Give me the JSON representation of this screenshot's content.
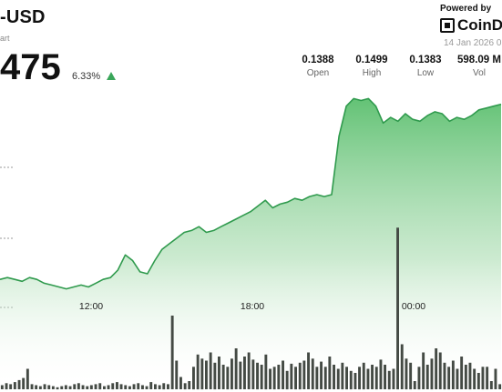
{
  "header": {
    "pair": "-USD",
    "subtitle": "art",
    "price": "475",
    "change": "6.33%",
    "powered_by": "Powered by",
    "brand": "CoinDe",
    "date": "14 Jan 2026 0"
  },
  "stats": [
    {
      "value": "0.1388",
      "label": "Open"
    },
    {
      "value": "0.1499",
      "label": "High"
    },
    {
      "value": "0.1383",
      "label": "Low"
    },
    {
      "value": "598.09 M",
      "label": "Vol"
    }
  ],
  "colors": {
    "up": "#3aa65a",
    "area_top": "#5bbf6e",
    "line": "#2f9a4d",
    "bars": "#444a44"
  },
  "chart_data": {
    "type": "area",
    "x_axis": {
      "tick_labels": [
        "12:00",
        "18:00",
        "00:00"
      ]
    },
    "price_series": [
      0.14,
      0.1401,
      0.14,
      0.1399,
      0.1401,
      0.14,
      0.1398,
      0.1397,
      0.1396,
      0.1395,
      0.1396,
      0.1397,
      0.1396,
      0.1398,
      0.14,
      0.1401,
      0.1405,
      0.1413,
      0.141,
      0.1404,
      0.1403,
      0.141,
      0.1416,
      0.1419,
      0.1422,
      0.1425,
      0.1426,
      0.1428,
      0.1425,
      0.1426,
      0.1428,
      0.143,
      0.1432,
      0.1434,
      0.1436,
      0.1439,
      0.1442,
      0.1438,
      0.144,
      0.1441,
      0.1443,
      0.1442,
      0.1444,
      0.1445,
      0.1444,
      0.1445,
      0.1476,
      0.1492,
      0.1496,
      0.1495,
      0.1496,
      0.1492,
      0.1483,
      0.1486,
      0.1484,
      0.1488,
      0.1485,
      0.1484,
      0.1487,
      0.1489,
      0.1488,
      0.1484,
      0.1486,
      0.1485,
      0.1487,
      0.149,
      0.1491,
      0.1492,
      0.1493
    ],
    "volume_series": [
      4,
      6,
      5,
      7,
      9,
      11,
      20,
      5,
      4,
      3,
      5,
      4,
      3,
      2,
      3,
      4,
      3,
      5,
      6,
      4,
      3,
      4,
      5,
      6,
      3,
      4,
      6,
      7,
      5,
      4,
      3,
      5,
      6,
      4,
      3,
      7,
      5,
      4,
      6,
      5,
      72,
      28,
      12,
      6,
      8,
      22,
      34,
      30,
      28,
      36,
      26,
      32,
      24,
      22,
      30,
      40,
      27,
      32,
      36,
      29,
      26,
      24,
      34,
      20,
      22,
      24,
      28,
      18,
      25,
      22,
      26,
      28,
      36,
      30,
      22,
      27,
      22,
      32,
      24,
      20,
      26,
      22,
      18,
      16,
      22,
      26,
      20,
      24,
      22,
      29,
      24,
      18,
      20,
      158,
      44,
      30,
      26,
      8,
      22,
      36,
      24,
      30,
      40,
      36,
      26,
      22,
      28,
      20,
      32,
      24,
      26,
      20,
      16,
      22,
      22,
      8,
      20,
      5
    ]
  }
}
